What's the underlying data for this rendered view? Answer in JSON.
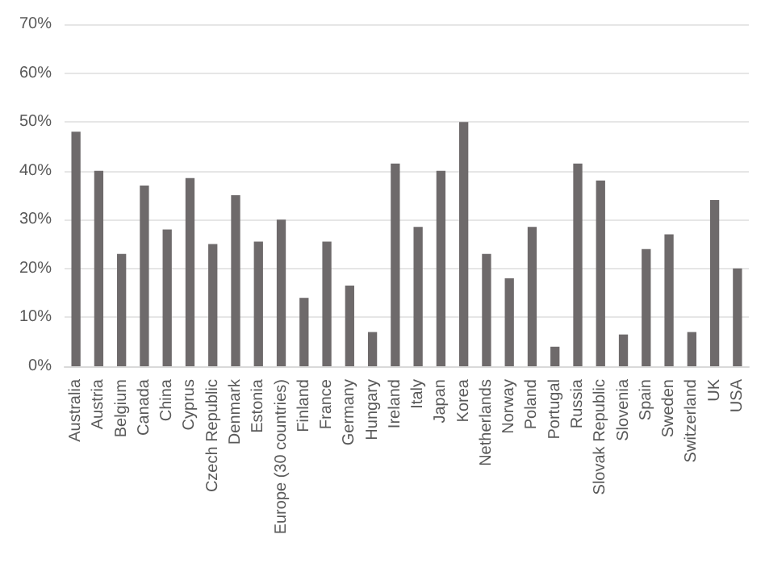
{
  "chart_data": {
    "type": "bar",
    "categories": [
      "Australia",
      "Austria",
      "Belgium",
      "Canada",
      "China",
      "Cyprus",
      "Czech Republic",
      "Denmark",
      "Estonia",
      "Europe (30 countries)",
      "Finland",
      "France",
      "Germany",
      "Hungary",
      "Ireland",
      "Italy",
      "Japan",
      "Korea",
      "Netherlands",
      "Norway",
      "Poland",
      "Portugal",
      "Russia",
      "Slovak Republic",
      "Slovenia",
      "Spain",
      "Sweden",
      "Switzerland",
      "UK",
      "USA"
    ],
    "values": [
      48,
      40,
      23,
      37,
      28,
      38.5,
      25,
      35,
      25.5,
      30,
      14,
      25.5,
      16.5,
      7,
      41.5,
      28.5,
      40,
      50,
      23,
      18,
      28.5,
      4,
      41.5,
      38,
      6.5,
      24,
      27,
      7,
      34,
      20
    ],
    "color": "#6e6a6b",
    "ylim": [
      0,
      70
    ],
    "yticks": [
      {
        "value": 0,
        "label": "0%"
      },
      {
        "value": 10,
        "label": "10%"
      },
      {
        "value": 20,
        "label": "20%"
      },
      {
        "value": 30,
        "label": "30%"
      },
      {
        "value": 40,
        "label": "40%"
      },
      {
        "value": 50,
        "label": "50%"
      },
      {
        "value": 60,
        "label": "60%"
      },
      {
        "value": 70,
        "label": "70%"
      }
    ],
    "grid": "y"
  }
}
